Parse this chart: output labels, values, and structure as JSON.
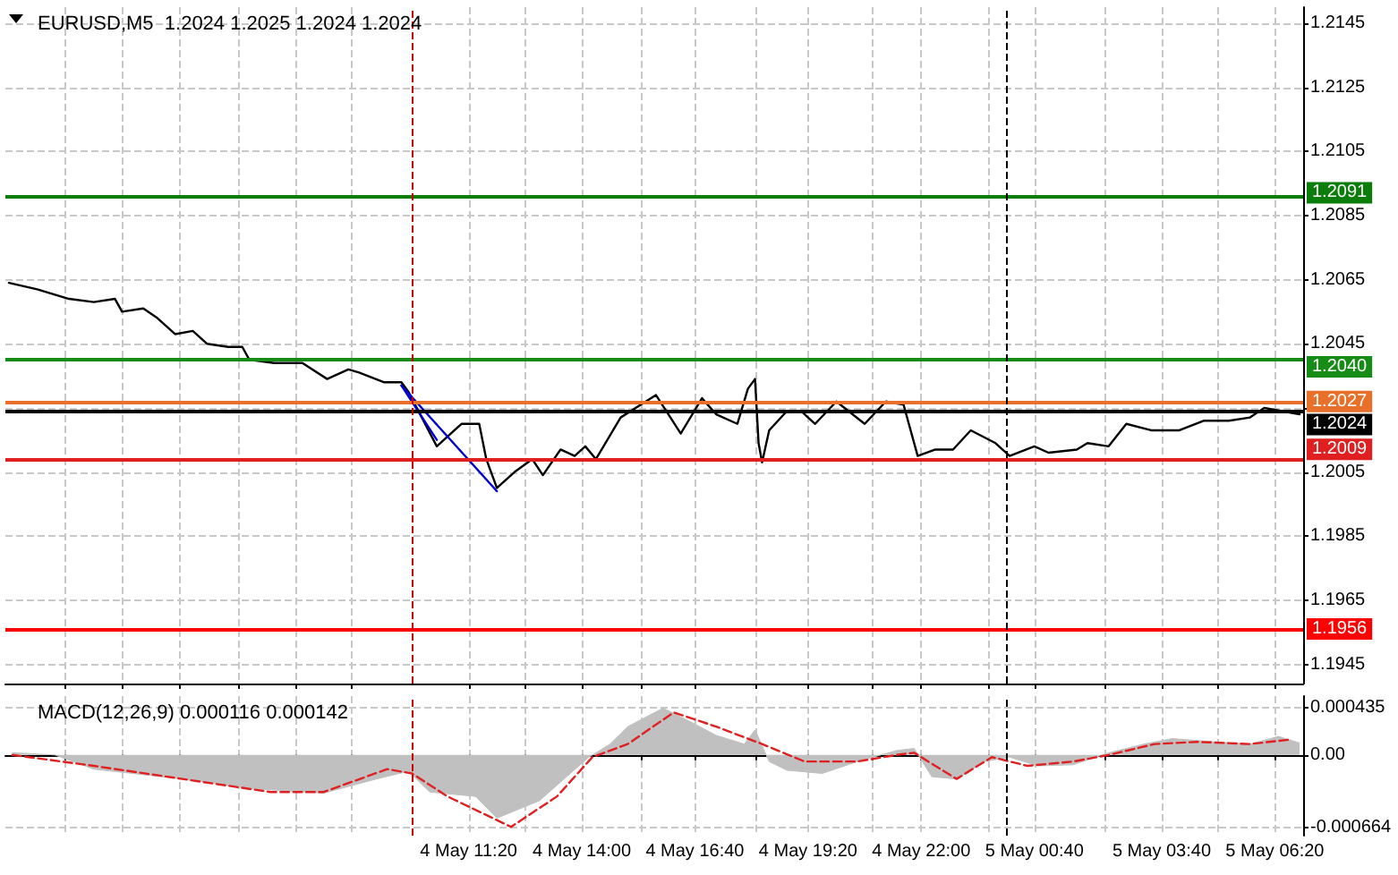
{
  "chart_data": [
    {
      "type": "line",
      "title": "EURUSD,M5  1.2024 1.2025 1.2024 1.2024",
      "marker": "none",
      "grid": true,
      "tick_labels": "y",
      "xlim": [
        "--05-04T00:25",
        "--05-05T07:00"
      ],
      "xticks": [
        {
          "value": "--05-04T01:50",
          "label": null
        },
        {
          "value": "--05-04T03:10",
          "label": null
        },
        {
          "value": "--05-04T04:30",
          "label": null
        },
        {
          "value": "--05-04T05:55",
          "label": null
        },
        {
          "value": "--05-04T07:15",
          "label": null
        },
        {
          "value": "--05-04T08:35",
          "label": null
        },
        {
          "value": "--05-04T11:20",
          "label": null
        },
        {
          "value": "--05-04T12:40",
          "label": null
        },
        {
          "value": "--05-04T14:00",
          "label": null
        },
        {
          "value": "--05-04T15:25",
          "label": null
        },
        {
          "value": "--05-04T16:40",
          "label": null
        },
        {
          "value": "--05-04T18:05",
          "label": null
        },
        {
          "value": "--05-04T19:20",
          "label": null
        },
        {
          "value": "--05-04T20:50",
          "label": null
        },
        {
          "value": "--05-04T22:00",
          "label": null
        },
        {
          "value": "--05-04T23:35",
          "label": null
        },
        {
          "value": "--05-05T00:40",
          "label": null
        },
        {
          "value": "--05-05T02:20",
          "label": null
        },
        {
          "value": "--05-05T03:40",
          "label": null
        },
        {
          "value": "--05-05T05:00",
          "label": null
        },
        {
          "value": "--05-05T06:20",
          "label": null
        }
      ],
      "ylim": [
        1.1939,
        1.215
      ],
      "yticks": [
        1.1945,
        1.1965,
        1.1985,
        1.2005,
        {
          "value": 1.2025,
          "label": null
        },
        1.2045,
        1.2065,
        1.2085,
        1.2105,
        1.2125,
        1.2145
      ],
      "series": [
        {
          "color": "#000000",
          "x": [
            "--05-04T00:30",
            "--05-04T01:10",
            "--05-04T01:55",
            "--05-04T02:30",
            "--05-04T03:00",
            "--05-04T03:10",
            "--05-04T03:40",
            "--05-04T04:00",
            "--05-04T04:25",
            "--05-04T04:50",
            "--05-04T05:10",
            "--05-04T05:40",
            "--05-04T06:00",
            "--05-04T06:10",
            "--05-04T06:45",
            "--05-04T07:25",
            "--05-04T08:00",
            "--05-04T08:30",
            "--05-04T08:45",
            "--05-04T09:20",
            "--05-04T09:45",
            "--05-04T09:55",
            "--05-04T10:35",
            "--05-04T11:10",
            "--05-04T11:35",
            "--05-04T11:45",
            "--05-04T12:00",
            "--05-04T12:25",
            "--05-04T12:50",
            "--05-04T13:05",
            "--05-04T13:30",
            "--05-04T13:50",
            "--05-04T14:05",
            "--05-04T14:20",
            "--05-04T14:55",
            "--05-04T15:45",
            "--05-04T16:20",
            "--05-04T16:50",
            "--05-04T17:10",
            "--05-04T17:40",
            "--05-04T17:55",
            "--05-04T18:05",
            "--05-04T18:10",
            "--05-04T18:15",
            "--05-04T18:25",
            "--05-04T18:50",
            "--05-04T19:10",
            "--05-04T19:30",
            "--05-04T20:00",
            "--05-04T20:40",
            "--05-04T21:10",
            "--05-04T21:35",
            "--05-04T21:55",
            "--05-04T22:20",
            "--05-04T22:45",
            "--05-04T23:10",
            "--05-04T23:45",
            "--05-05T00:05",
            "--05-05T00:40",
            "--05-05T01:00",
            "--05-05T01:40",
            "--05-05T01:55",
            "--05-05T02:25",
            "--05-05T02:50",
            "--05-05T03:25",
            "--05-05T04:05",
            "--05-05T04:40",
            "--05-05T05:15",
            "--05-05T05:45",
            "--05-05T06:05",
            "--05-05T06:30",
            "--05-05T06:55"
          ],
          "values": [
            1.2064,
            1.2062,
            1.2059,
            1.2058,
            1.2059,
            1.2055,
            1.2056,
            1.2053,
            1.2048,
            1.2049,
            1.2045,
            1.2044,
            1.2044,
            1.204,
            1.2039,
            1.2039,
            1.2034,
            1.2037,
            1.2036,
            1.2033,
            1.2033,
            1.203,
            1.2013,
            1.202,
            1.202,
            1.2009,
            1.2,
            1.2005,
            1.2009,
            1.2004,
            1.2012,
            1.201,
            1.2013,
            1.2009,
            1.2022,
            1.2029,
            1.2017,
            1.2028,
            1.2023,
            1.202,
            1.2031,
            1.2034,
            1.2014,
            1.2008,
            1.2018,
            1.2024,
            1.2024,
            1.202,
            1.2027,
            1.202,
            1.2027,
            1.2026,
            1.201,
            1.2012,
            1.2012,
            1.2018,
            1.2014,
            1.201,
            1.2013,
            1.2011,
            1.2012,
            1.2014,
            1.2013,
            1.202,
            1.2018,
            1.2018,
            1.2021,
            1.2021,
            1.2022,
            1.2025,
            1.2024,
            1.2023
          ]
        },
        {
          "color": "#0000cc",
          "x": [
            "--05-04T09:45",
            "--05-04T10:35"
          ],
          "values": [
            1.2032,
            1.2015
          ]
        },
        {
          "color": "#0000cc",
          "x": [
            "--05-04T09:45",
            "--05-04T12:00"
          ],
          "values": [
            1.2032,
            1.1999
          ]
        }
      ],
      "ref_lines": [
        {
          "axis": "y",
          "value": 1.2091,
          "label": "1.2091",
          "color": "#0a7d0a"
        },
        {
          "axis": "y",
          "value": 1.204,
          "label": "1.2040",
          "color": "#168c16"
        },
        {
          "axis": "y",
          "value": 1.2027,
          "label": "1.2027",
          "color": "#e8702a"
        },
        {
          "axis": "y",
          "value": 1.2024,
          "label": "1.2024",
          "color": "#000000"
        },
        {
          "axis": "y",
          "value": 1.2009,
          "label": "1.2009",
          "color": "#e02020"
        },
        {
          "axis": "y",
          "value": 1.1956,
          "label": "1.1956",
          "color": "#ff0000"
        },
        {
          "axis": "x",
          "value": "--05-04T10:00",
          "color": "#cc0000",
          "line_style": "dashed"
        },
        {
          "axis": "x",
          "value": "--05-05T00:00",
          "color": "#000000",
          "line_style": "dashed"
        }
      ]
    },
    {
      "type": "line",
      "title": "MACD(12,26,9) 0.000116 0.000142",
      "marker": "none",
      "grid": true,
      "xlim": [
        "--05-04T00:25",
        "--05-05T07:00"
      ],
      "xticks": [
        {
          "value": "--05-04T01:50",
          "label": null
        },
        {
          "value": "--05-04T03:10",
          "label": null
        },
        {
          "value": "--05-04T04:30",
          "label": null
        },
        {
          "value": "--05-04T05:55",
          "label": null
        },
        {
          "value": "--05-04T07:15",
          "label": null
        },
        {
          "value": "--05-04T08:35",
          "label": null
        },
        {
          "value": "--05-04T11:20",
          "label": "4 May 11:20"
        },
        {
          "value": "--05-04T12:40",
          "label": null
        },
        {
          "value": "--05-04T14:00",
          "label": "4 May 14:00"
        },
        {
          "value": "--05-04T15:25",
          "label": null
        },
        {
          "value": "--05-04T16:40",
          "label": "4 May 16:40"
        },
        {
          "value": "--05-04T18:05",
          "label": null
        },
        {
          "value": "--05-04T19:20",
          "label": "4 May 19:20"
        },
        {
          "value": "--05-04T20:50",
          "label": null
        },
        {
          "value": "--05-04T22:00",
          "label": "4 May 22:00"
        },
        {
          "value": "--05-04T23:35",
          "label": null
        },
        {
          "value": "--05-05T00:40",
          "label": "5 May 00:40"
        },
        {
          "value": "--05-05T02:20",
          "label": null
        },
        {
          "value": "--05-05T03:40",
          "label": "5 May 03:40"
        },
        {
          "value": "--05-05T05:00",
          "label": null
        },
        {
          "value": "--05-05T06:20",
          "label": "5 May 06:20"
        }
      ],
      "ylim": [
        -0.00074,
        0.00054
      ],
      "yticks": [
        -0.000664,
        {
          "value": 0,
          "label": "0.00"
        },
        0.000435
      ],
      "series": [
        {
          "type": "area",
          "color": "#c0c0c0",
          "x": [
            "--05-04T00:35",
            "--05-04T01:35",
            "--05-04T02:30",
            "--05-04T04:35",
            "--05-04T06:15",
            "--05-04T07:55",
            "--05-04T09:10",
            "--05-04T09:55",
            "--05-04T10:25",
            "--05-04T11:30",
            "--05-04T12:00",
            "--05-04T13:00",
            "--05-04T13:35",
            "--05-04T14:10",
            "--05-04T14:40",
            "--05-04T15:05",
            "--05-04T15:55",
            "--05-04T16:35",
            "--05-04T17:10",
            "--05-04T17:50",
            "--05-04T18:05",
            "--05-04T18:25",
            "--05-04T18:50",
            "--05-04T19:40",
            "--05-04T20:30",
            "--05-04T21:25",
            "--05-04T21:50",
            "--05-04T22:15",
            "--05-04T22:50",
            "--05-04T23:30",
            "--05-05T00:05",
            "--05-05T00:45",
            "--05-05T01:35",
            "--05-05T02:25",
            "--05-05T03:15",
            "--05-05T03:55",
            "--05-05T04:55",
            "--05-05T05:45",
            "--05-05T06:25",
            "--05-05T06:55"
          ],
          "values": [
            2e-05,
            0,
            -0.00013,
            -0.00022,
            -0.00031,
            -0.00035,
            -0.00022,
            -0.00015,
            -0.00034,
            -0.00038,
            -0.00058,
            -0.00042,
            -0.00022,
            -2e-05,
            0.0001,
            0.00026,
            0.00043,
            0.0003,
            0.00018,
            0.0001,
            0.00023,
            -6e-05,
            -0.00014,
            -0.00017,
            -6e-05,
            4e-05,
            6e-05,
            -0.0002,
            -0.00022,
            -6e-05,
            -2e-05,
            -0.0001,
            -9e-05,
            2e-05,
            0.0001,
            0.00015,
            0.00012,
            0.0001,
            0.00017,
            0.00011
          ]
        },
        {
          "color": "#e02020",
          "line_style": "dashed",
          "x": [
            "--05-04T00:35",
            "--05-04T02:30",
            "--05-04T04:35",
            "--05-04T06:40",
            "--05-04T07:55",
            "--05-04T09:25",
            "--05-04T10:00",
            "--05-04T10:50",
            "--05-04T12:20",
            "--05-04T13:25",
            "--05-04T14:15",
            "--05-04T15:05",
            "--05-04T16:10",
            "--05-04T17:10",
            "--05-04T18:15",
            "--05-04T19:15",
            "--05-04T20:30",
            "--05-04T21:25",
            "--05-04T21:50",
            "--05-04T22:50",
            "--05-04T23:40",
            "--05-05T00:30",
            "--05-05T01:35",
            "--05-05T02:25",
            "--05-05T03:30",
            "--05-05T04:30",
            "--05-05T05:45",
            "--05-05T06:40"
          ],
          "values": [
            0,
            -0.0001,
            -0.00022,
            -0.00034,
            -0.00034,
            -0.00013,
            -0.00017,
            -0.00038,
            -0.00066,
            -0.00038,
            -2e-05,
            0.0001,
            0.00039,
            0.00026,
            0.0001,
            -6e-05,
            -6e-05,
            0,
            2e-05,
            -0.00022,
            -2e-05,
            -0.0001,
            -6e-05,
            0,
            0.0001,
            0.00012,
            0.0001,
            0.00014
          ]
        }
      ],
      "ref_lines": [
        {
          "axis": "x",
          "value": "--05-04T10:00",
          "color": "#cc0000",
          "line_style": "dashed"
        },
        {
          "axis": "x",
          "value": "--05-05T00:00",
          "color": "#000000",
          "line_style": "dashed"
        }
      ]
    }
  ]
}
